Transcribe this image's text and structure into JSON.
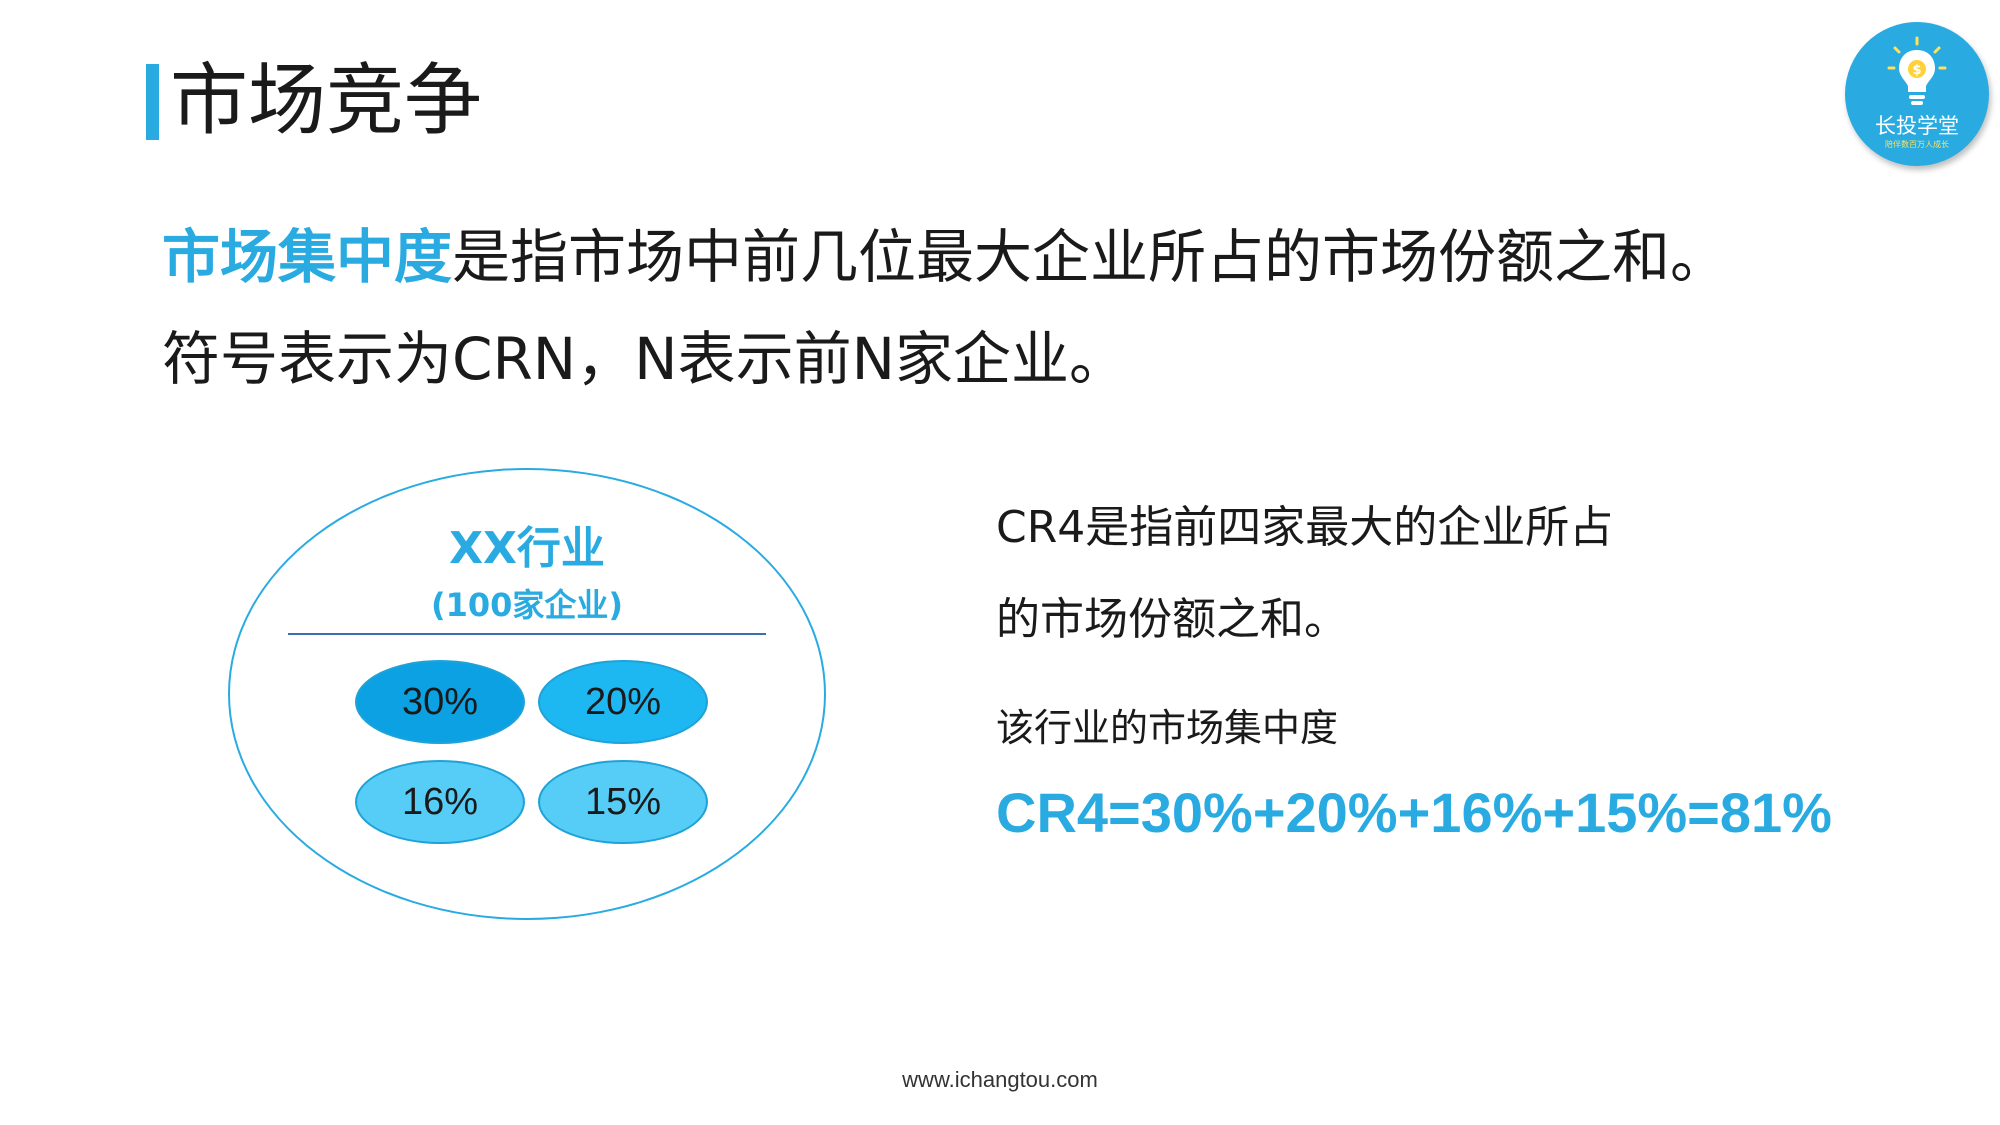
{
  "header": {
    "title": "市场竞争"
  },
  "logo": {
    "name": "长投学堂",
    "slogan": "陪伴数百万人成长"
  },
  "definition": {
    "term": "市场集中度",
    "line1_rest": "是指市场中前几位最大企业所占的市场份额之和。",
    "line2": "符号表示为CRN，N表示前N家企业。"
  },
  "industry": {
    "name": "XX行业",
    "count": "(100家企业)",
    "shares": [
      "30%",
      "20%",
      "16%",
      "15%"
    ]
  },
  "explanation": {
    "cr4_line1": "CR4是指前四家最大的企业所占",
    "cr4_line2": "的市场份额之和。",
    "concentration_label": "该行业的市场集中度",
    "formula": "CR4=30%+20%+16%+15%=81%"
  },
  "footer": {
    "url": "www.ichangtou.com"
  },
  "colors": {
    "accent": "#29abe2",
    "text": "#1a1a1a"
  }
}
